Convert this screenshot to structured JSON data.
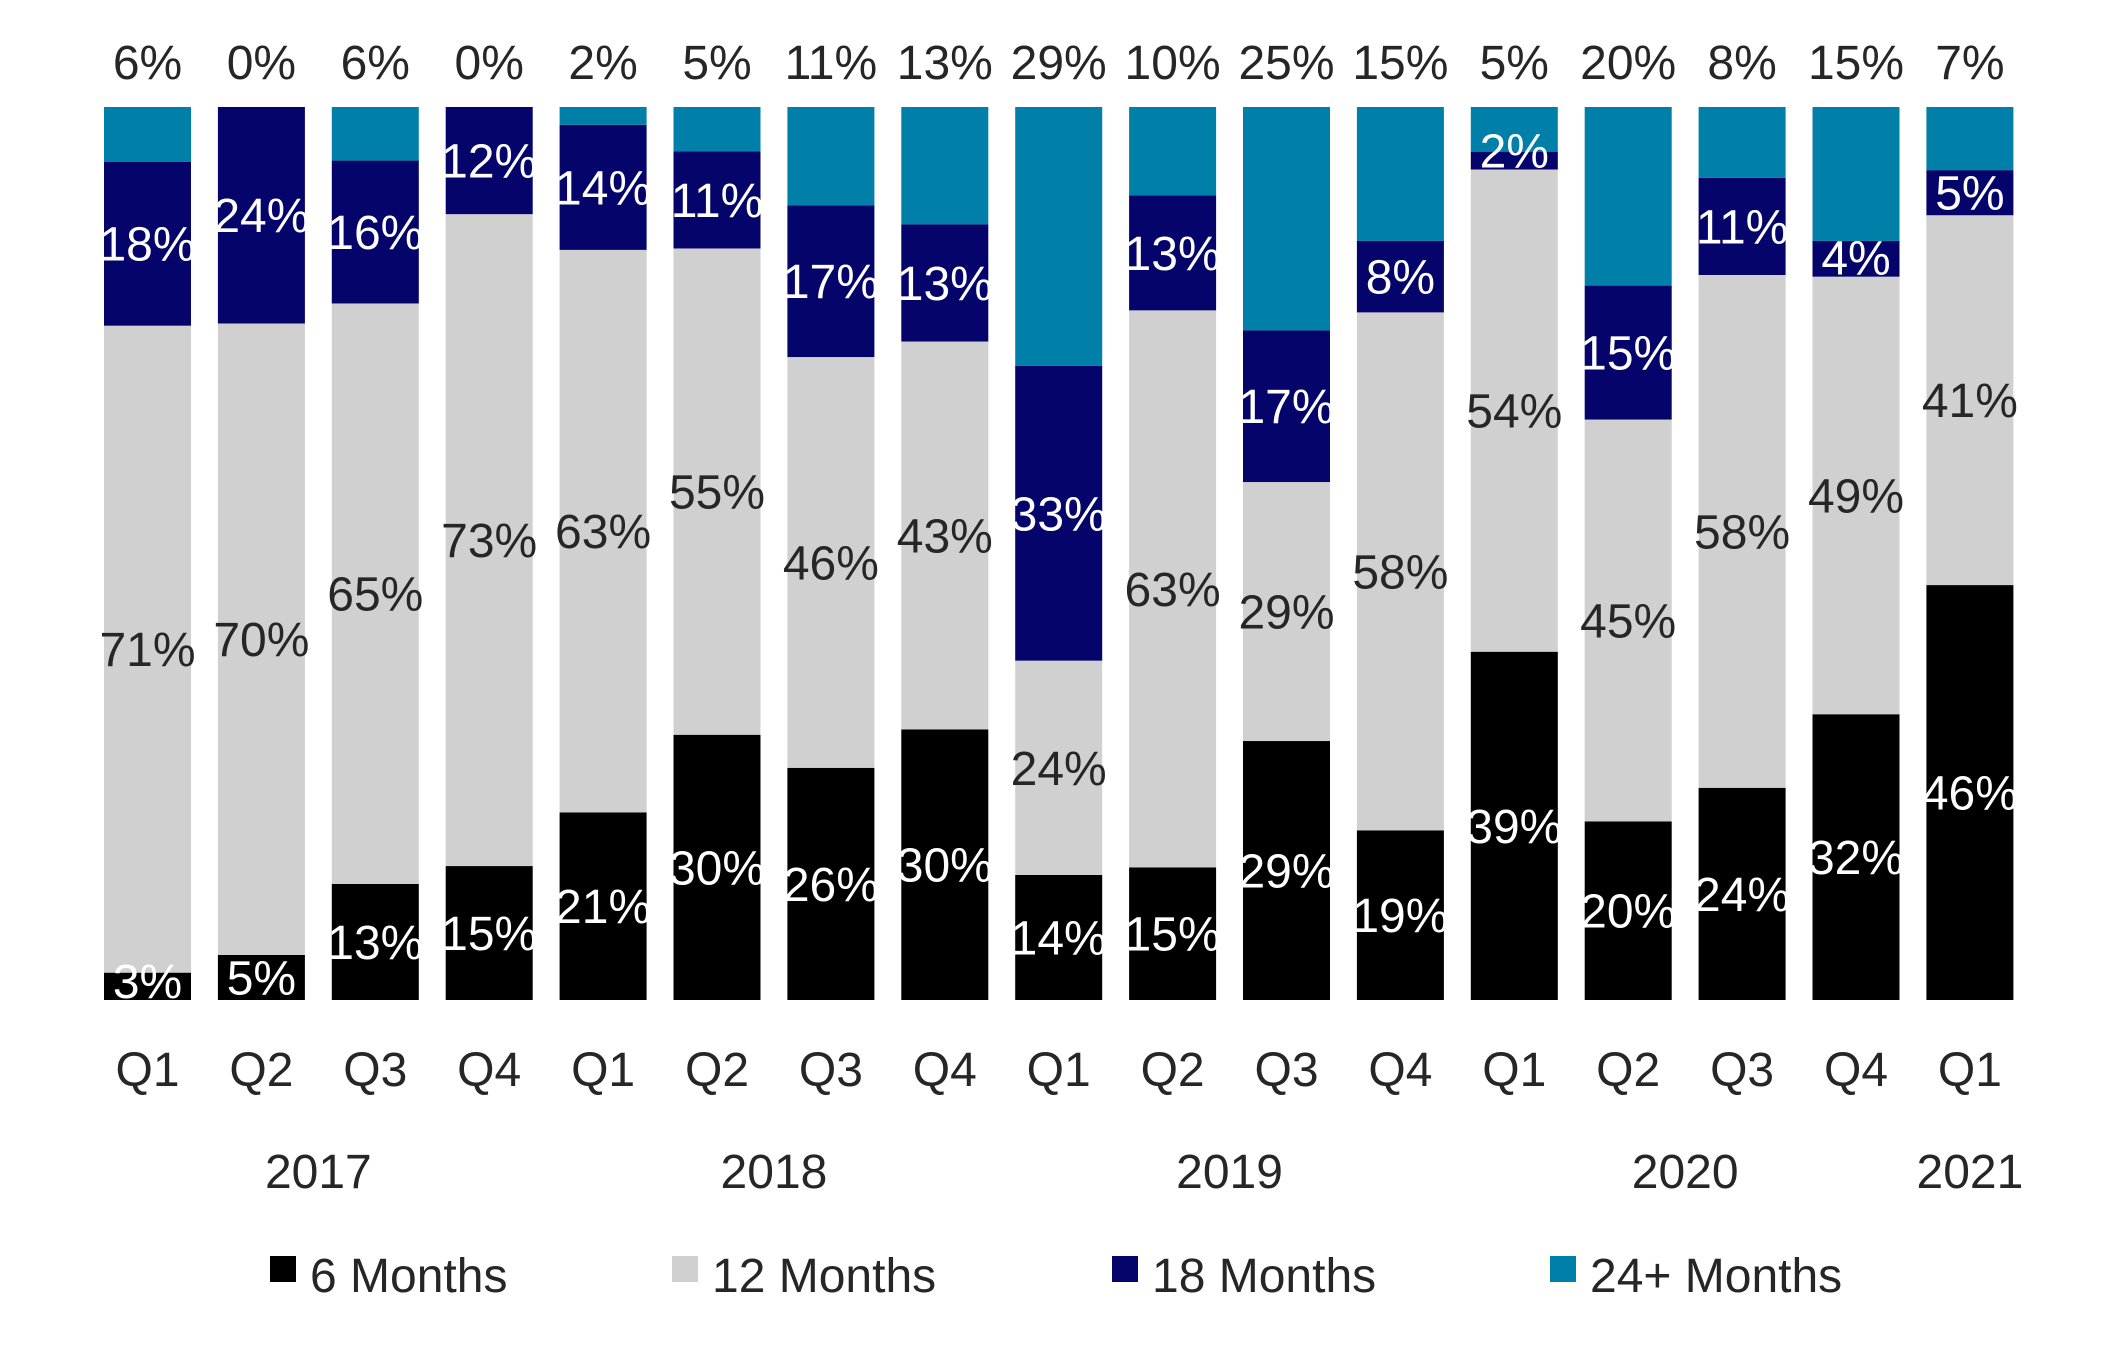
{
  "chart_data": {
    "type": "bar",
    "stacked": true,
    "normalized": true,
    "categories": [
      "Q1",
      "Q2",
      "Q3",
      "Q4",
      "Q1",
      "Q2",
      "Q3",
      "Q4",
      "Q1",
      "Q2",
      "Q3",
      "Q4",
      "Q1",
      "Q2",
      "Q3",
      "Q4",
      "Q1"
    ],
    "years": [
      {
        "label": "2017",
        "first": 0,
        "last": 3
      },
      {
        "label": "2018",
        "first": 4,
        "last": 7
      },
      {
        "label": "2019",
        "first": 8,
        "last": 11
      },
      {
        "label": "2020",
        "first": 12,
        "last": 15
      },
      {
        "label": "2021",
        "first": 16,
        "last": 16
      }
    ],
    "series": [
      {
        "name": "6 Months",
        "color": "#000000",
        "label_color": "#ffffff",
        "values": [
          3,
          5,
          13,
          15,
          21,
          30,
          26,
          30,
          14,
          15,
          29,
          19,
          39,
          20,
          24,
          32,
          46
        ]
      },
      {
        "name": "12 Months",
        "color": "#d0d0d0",
        "label_color": "#262626",
        "values": [
          71,
          70,
          65,
          73,
          63,
          55,
          46,
          43,
          24,
          63,
          29,
          58,
          54,
          45,
          58,
          49,
          41
        ]
      },
      {
        "name": "18 Months",
        "color": "#04046a",
        "label_color": "#ffffff",
        "values": [
          18,
          24,
          16,
          12,
          14,
          11,
          17,
          13,
          33,
          13,
          17,
          8,
          2,
          15,
          11,
          4,
          5
        ]
      },
      {
        "name": "24+ Months",
        "color": "#0080a8",
        "label_color": "#262626",
        "values": [
          6,
          0,
          6,
          0,
          2,
          5,
          11,
          13,
          29,
          10,
          25,
          15,
          5,
          20,
          8,
          15,
          7
        ]
      }
    ],
    "value_suffix": "%",
    "ylim": [
      0,
      100
    ],
    "grid": false,
    "legend_position": "bottom",
    "title": "",
    "xlabel": "",
    "ylabel": ""
  }
}
